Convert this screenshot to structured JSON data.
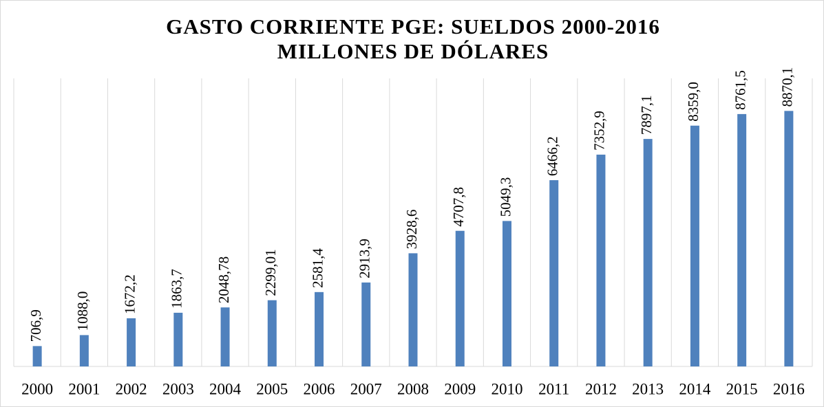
{
  "chart_data": {
    "type": "bar",
    "title": "GASTO CORRIENTE PGE: SUELDOS 2000-2016",
    "subtitle": "MILLONES DE DÓLARES",
    "categories": [
      "2000",
      "2001",
      "2002",
      "2003",
      "2004",
      "2005",
      "2006",
      "2007",
      "2008",
      "2009",
      "2010",
      "2011",
      "2012",
      "2013",
      "2014",
      "2015",
      "2016"
    ],
    "values": [
      706.9,
      1088.0,
      1672.2,
      1863.7,
      2048.78,
      2299.01,
      2581.4,
      2913.9,
      3928.6,
      4707.8,
      5049.3,
      6466.2,
      7352.9,
      7897.1,
      8359.0,
      8761.5,
      8870.1
    ],
    "value_labels": [
      "706,9",
      "1088,0",
      "1672,2",
      "1863,7",
      "2048,78",
      "2299,01",
      "2581,4",
      "2913,9",
      "3928,6",
      "4707,8",
      "5049,3",
      "6466,2",
      "7352,9",
      "7897,1",
      "8359,0",
      "8761,5",
      "8870,1"
    ],
    "color": "#4f81bd",
    "ylim": [
      0,
      10000
    ]
  }
}
